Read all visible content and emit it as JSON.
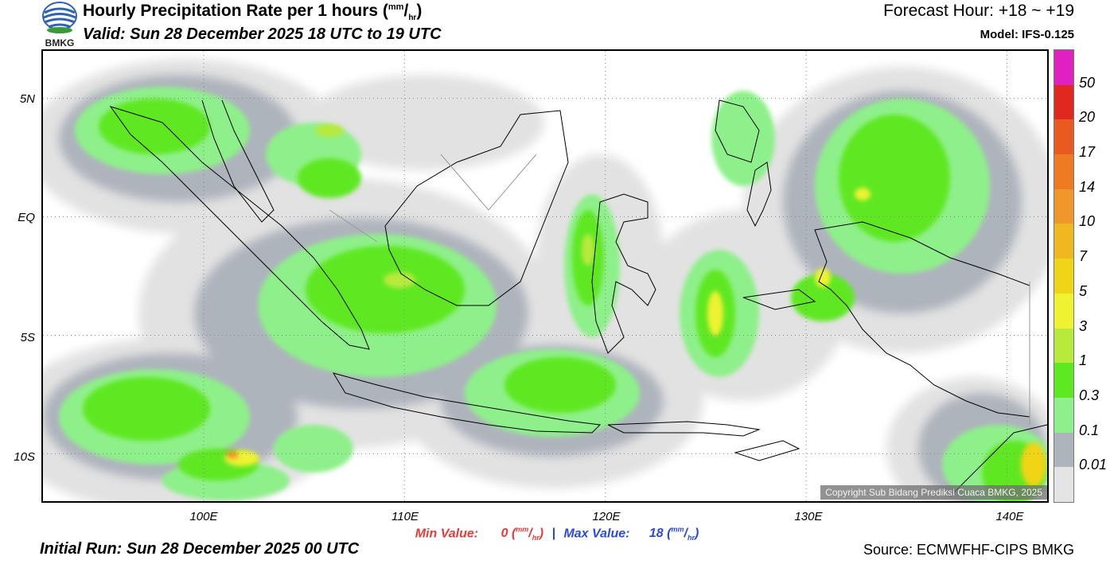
{
  "header": {
    "title_text": "Hourly Precipitation Rate per 1 hours (",
    "title_unit_top": "mm",
    "title_unit_bottom": "hr",
    "title_close": ")",
    "valid": "Valid: Sun 28 December 2025 18 UTC to 19 UTC",
    "forecast_hour": "Forecast Hour: +18 ~ +19",
    "model": "Model: IFS-0.125",
    "logo_text": "BMKG"
  },
  "map": {
    "lat_labels": [
      "5N",
      "EQ",
      "5S",
      "10S"
    ],
    "lon_labels": [
      "100E",
      "110E",
      "120E",
      "130E",
      "140E"
    ],
    "lat_range": [
      -12,
      7
    ],
    "lon_range": [
      92,
      142
    ],
    "copyright": "Copyright Sub Bidang Prediksi Cuaca BMKG, 2025"
  },
  "legend": {
    "labels": [
      "50",
      "20",
      "17",
      "14",
      "10",
      "7",
      "5",
      "3",
      "1",
      "0.3",
      "0.1",
      "0.01"
    ],
    "colors": [
      "#e020c0",
      "#e02820",
      "#e85a20",
      "#ee7a22",
      "#f0962a",
      "#f0b820",
      "#f0d418",
      "#eef230",
      "#b8ea3c",
      "#5ee820",
      "#8ef08a",
      "#aeb4bc",
      "#e4e4e4"
    ]
  },
  "stats": {
    "min_label": "Min Value:",
    "min_value": "0",
    "max_label": "Max Value:",
    "max_value": "18",
    "separator": "|",
    "unit_top": "mm",
    "unit_bottom": "hr"
  },
  "footer": {
    "initial_run": "Initial Run: Sun 28 December 2025 00 UTC",
    "source": "Source: ECMWFHF-CIPS BMKG"
  }
}
